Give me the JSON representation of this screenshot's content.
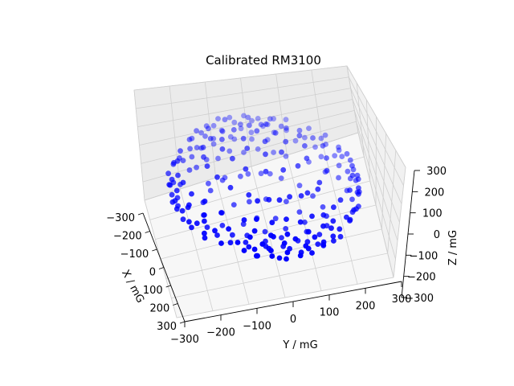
{
  "chart_data": {
    "type": "scatter",
    "projection": "3d",
    "title": "Calibrated RM3100",
    "xlabel": "X / mG",
    "ylabel": "Y / mG",
    "zlabel": "Z / mG",
    "xlim": [
      -300,
      300
    ],
    "ylim": [
      -300,
      300
    ],
    "zlim": [
      -300,
      300
    ],
    "xticks": [
      "−300",
      "−200",
      "−100",
      "0",
      "100",
      "200",
      "300"
    ],
    "yticks": [
      "−300",
      "−200",
      "−100",
      "0",
      "100",
      "200",
      "300"
    ],
    "zticks": [
      "−300",
      "−200",
      "−100",
      "0",
      "100",
      "200",
      "300"
    ],
    "grid": true,
    "marker_color": "#0000ff",
    "points": [
      [
        -150,
        -220,
        40
      ],
      [
        -120,
        -250,
        20
      ],
      [
        -90,
        -260,
        -10
      ],
      [
        -60,
        -270,
        30
      ],
      [
        -30,
        -275,
        -40
      ],
      [
        0,
        -280,
        10
      ],
      [
        30,
        -270,
        -20
      ],
      [
        60,
        -265,
        40
      ],
      [
        90,
        -250,
        -30
      ],
      [
        120,
        -240,
        20
      ],
      [
        150,
        -220,
        -10
      ],
      [
        180,
        -190,
        30
      ],
      [
        200,
        -170,
        -40
      ],
      [
        220,
        -140,
        10
      ],
      [
        240,
        -110,
        -20
      ],
      [
        250,
        -80,
        30
      ],
      [
        260,
        -50,
        -10
      ],
      [
        270,
        -20,
        20
      ],
      [
        275,
        10,
        -30
      ],
      [
        270,
        40,
        10
      ],
      [
        265,
        70,
        -40
      ],
      [
        250,
        100,
        20
      ],
      [
        240,
        130,
        -10
      ],
      [
        220,
        160,
        30
      ],
      [
        200,
        180,
        -20
      ],
      [
        180,
        200,
        10
      ],
      [
        150,
        220,
        -30
      ],
      [
        120,
        240,
        20
      ],
      [
        90,
        255,
        -10
      ],
      [
        60,
        265,
        30
      ],
      [
        30,
        270,
        -20
      ],
      [
        0,
        275,
        10
      ],
      [
        -30,
        270,
        -40
      ],
      [
        -60,
        265,
        20
      ],
      [
        -90,
        255,
        -10
      ],
      [
        -120,
        240,
        30
      ],
      [
        -150,
        220,
        -20
      ],
      [
        -180,
        200,
        10
      ],
      [
        -200,
        180,
        -30
      ],
      [
        -220,
        160,
        20
      ],
      [
        -240,
        130,
        -10
      ],
      [
        -250,
        100,
        30
      ],
      [
        -265,
        70,
        -20
      ],
      [
        -270,
        40,
        10
      ],
      [
        -275,
        10,
        -40
      ],
      [
        -270,
        -20,
        20
      ],
      [
        -260,
        -50,
        -10
      ],
      [
        -250,
        -80,
        30
      ],
      [
        -240,
        -110,
        -20
      ],
      [
        -220,
        -140,
        10
      ],
      [
        -200,
        -170,
        -30
      ],
      [
        -180,
        -190,
        20
      ],
      [
        -100,
        -150,
        180
      ],
      [
        -50,
        -170,
        190
      ],
      [
        0,
        -180,
        200
      ],
      [
        50,
        -170,
        190
      ],
      [
        100,
        -150,
        180
      ],
      [
        140,
        -110,
        170
      ],
      [
        170,
        -60,
        160
      ],
      [
        180,
        0,
        170
      ],
      [
        170,
        60,
        160
      ],
      [
        140,
        110,
        170
      ],
      [
        100,
        150,
        180
      ],
      [
        50,
        170,
        190
      ],
      [
        0,
        180,
        200
      ],
      [
        -50,
        170,
        190
      ],
      [
        -100,
        150,
        180
      ],
      [
        -140,
        110,
        170
      ],
      [
        -170,
        60,
        160
      ],
      [
        -180,
        0,
        170
      ],
      [
        -170,
        -60,
        160
      ],
      [
        -140,
        -110,
        170
      ],
      [
        -80,
        -100,
        240
      ],
      [
        -30,
        -120,
        250
      ],
      [
        20,
        -110,
        250
      ],
      [
        70,
        -90,
        240
      ],
      [
        100,
        -40,
        245
      ],
      [
        110,
        10,
        250
      ],
      [
        100,
        60,
        245
      ],
      [
        70,
        100,
        240
      ],
      [
        20,
        115,
        250
      ],
      [
        -30,
        120,
        250
      ],
      [
        -80,
        100,
        240
      ],
      [
        -110,
        50,
        245
      ],
      [
        -115,
        0,
        250
      ],
      [
        -110,
        -50,
        245
      ],
      [
        -40,
        -50,
        280
      ],
      [
        10,
        -60,
        285
      ],
      [
        50,
        -20,
        285
      ],
      [
        50,
        30,
        280
      ],
      [
        10,
        60,
        285
      ],
      [
        -40,
        50,
        280
      ],
      [
        -60,
        0,
        285
      ],
      [
        0,
        0,
        295
      ],
      [
        -100,
        -150,
        -180
      ],
      [
        -50,
        -170,
        -190
      ],
      [
        0,
        -180,
        -200
      ],
      [
        50,
        -170,
        -190
      ],
      [
        100,
        -150,
        -180
      ],
      [
        140,
        -110,
        -170
      ],
      [
        170,
        -60,
        -160
      ],
      [
        180,
        0,
        -170
      ],
      [
        170,
        60,
        -160
      ],
      [
        140,
        110,
        -170
      ],
      [
        100,
        150,
        -180
      ],
      [
        50,
        170,
        -190
      ],
      [
        0,
        180,
        -200
      ],
      [
        -50,
        170,
        -190
      ],
      [
        -100,
        150,
        -180
      ],
      [
        -140,
        110,
        -170
      ],
      [
        -170,
        60,
        -160
      ],
      [
        -180,
        0,
        -170
      ],
      [
        -170,
        -60,
        -160
      ],
      [
        -140,
        -110,
        -170
      ],
      [
        -80,
        -100,
        -240
      ],
      [
        -30,
        -120,
        -250
      ],
      [
        20,
        -110,
        -250
      ],
      [
        70,
        -90,
        -240
      ],
      [
        100,
        -40,
        -245
      ],
      [
        110,
        10,
        -250
      ],
      [
        100,
        60,
        -245
      ],
      [
        70,
        100,
        -240
      ],
      [
        20,
        115,
        -250
      ],
      [
        -30,
        120,
        -250
      ],
      [
        -80,
        100,
        -240
      ],
      [
        -110,
        50,
        -245
      ],
      [
        -115,
        0,
        -250
      ],
      [
        -110,
        -50,
        -245
      ],
      [
        -40,
        -50,
        -280
      ],
      [
        10,
        -60,
        -285
      ],
      [
        50,
        -20,
        -285
      ],
      [
        50,
        30,
        -280
      ],
      [
        10,
        60,
        -285
      ],
      [
        -40,
        50,
        -280
      ],
      [
        -60,
        0,
        -285
      ],
      [
        0,
        0,
        -295
      ],
      [
        -200,
        -150,
        100
      ],
      [
        -220,
        -120,
        120
      ],
      [
        -240,
        -80,
        110
      ],
      [
        -250,
        -40,
        130
      ],
      [
        -260,
        0,
        110
      ],
      [
        -250,
        40,
        120
      ],
      [
        -240,
        80,
        100
      ],
      [
        -220,
        120,
        110
      ],
      [
        -200,
        150,
        120
      ],
      [
        200,
        -150,
        100
      ],
      [
        220,
        -120,
        120
      ],
      [
        240,
        -80,
        110
      ],
      [
        250,
        -40,
        130
      ],
      [
        260,
        0,
        110
      ],
      [
        250,
        40,
        120
      ],
      [
        240,
        80,
        100
      ],
      [
        220,
        120,
        110
      ],
      [
        200,
        150,
        120
      ],
      [
        -200,
        -150,
        -100
      ],
      [
        -220,
        -120,
        -120
      ],
      [
        -240,
        -80,
        -110
      ],
      [
        -250,
        -40,
        -130
      ],
      [
        -260,
        0,
        -110
      ],
      [
        -250,
        40,
        -120
      ],
      [
        -240,
        80,
        -100
      ],
      [
        -220,
        120,
        -110
      ],
      [
        -200,
        150,
        -120
      ],
      [
        200,
        -150,
        -100
      ],
      [
        220,
        -120,
        -120
      ],
      [
        240,
        -80,
        -110
      ],
      [
        250,
        -40,
        -130
      ],
      [
        260,
        0,
        -110
      ],
      [
        250,
        40,
        -120
      ],
      [
        240,
        80,
        -100
      ],
      [
        220,
        120,
        -110
      ],
      [
        200,
        150,
        -120
      ],
      [
        -150,
        -200,
        110
      ],
      [
        -100,
        -230,
        120
      ],
      [
        -50,
        -250,
        100
      ],
      [
        0,
        -255,
        120
      ],
      [
        50,
        -250,
        110
      ],
      [
        100,
        -230,
        120
      ],
      [
        150,
        -200,
        100
      ],
      [
        -150,
        200,
        110
      ],
      [
        -100,
        230,
        120
      ],
      [
        -50,
        250,
        100
      ],
      [
        0,
        255,
        120
      ],
      [
        50,
        250,
        110
      ],
      [
        100,
        230,
        120
      ],
      [
        150,
        200,
        100
      ],
      [
        -150,
        -200,
        -110
      ],
      [
        -100,
        -230,
        -120
      ],
      [
        -50,
        -250,
        -100
      ],
      [
        0,
        -255,
        -120
      ],
      [
        50,
        -250,
        -110
      ],
      [
        100,
        -230,
        -120
      ],
      [
        150,
        -200,
        -100
      ],
      [
        -150,
        200,
        -110
      ],
      [
        -100,
        230,
        -120
      ],
      [
        -50,
        250,
        -100
      ],
      [
        0,
        255,
        -120
      ],
      [
        50,
        250,
        -110
      ],
      [
        100,
        230,
        -120
      ],
      [
        150,
        200,
        -100
      ],
      [
        -230,
        -130,
        60
      ],
      [
        -255,
        -90,
        50
      ],
      [
        -270,
        -45,
        60
      ],
      [
        -272,
        20,
        55
      ],
      [
        -262,
        70,
        60
      ],
      [
        -240,
        110,
        50
      ],
      [
        230,
        -130,
        60
      ],
      [
        255,
        -90,
        50
      ],
      [
        270,
        -45,
        60
      ],
      [
        272,
        20,
        55
      ],
      [
        262,
        70,
        60
      ],
      [
        240,
        110,
        50
      ],
      [
        -230,
        -130,
        -60
      ],
      [
        -255,
        -90,
        -50
      ],
      [
        -270,
        -45,
        -60
      ],
      [
        -272,
        20,
        -55
      ],
      [
        -262,
        70,
        -60
      ],
      [
        -240,
        110,
        -50
      ],
      [
        230,
        -130,
        -60
      ],
      [
        255,
        -90,
        -50
      ],
      [
        270,
        -45,
        -60
      ],
      [
        272,
        20,
        -55
      ],
      [
        262,
        70,
        -60
      ],
      [
        240,
        110,
        -50
      ],
      [
        -130,
        -230,
        60
      ],
      [
        -70,
        -260,
        50
      ],
      [
        -10,
        -270,
        60
      ],
      [
        60,
        -262,
        55
      ],
      [
        120,
        -240,
        60
      ],
      [
        -130,
        230,
        60
      ],
      [
        -70,
        260,
        50
      ],
      [
        -10,
        270,
        60
      ],
      [
        60,
        262,
        55
      ],
      [
        120,
        240,
        60
      ],
      [
        -130,
        -230,
        -60
      ],
      [
        -70,
        -260,
        -50
      ],
      [
        -10,
        -270,
        -60
      ],
      [
        60,
        -262,
        -55
      ],
      [
        120,
        -240,
        -60
      ],
      [
        -130,
        230,
        -60
      ],
      [
        -70,
        260,
        -50
      ],
      [
        -10,
        270,
        -60
      ],
      [
        60,
        262,
        -55
      ],
      [
        120,
        240,
        -60
      ],
      [
        -180,
        -100,
        180
      ],
      [
        -200,
        -40,
        190
      ],
      [
        -195,
        30,
        185
      ],
      [
        -175,
        90,
        180
      ],
      [
        180,
        -100,
        180
      ],
      [
        200,
        -40,
        190
      ],
      [
        195,
        30,
        185
      ],
      [
        175,
        90,
        180
      ],
      [
        -180,
        -100,
        -180
      ],
      [
        -200,
        -40,
        -190
      ],
      [
        -195,
        30,
        -185
      ],
      [
        -175,
        90,
        -180
      ],
      [
        180,
        -100,
        -180
      ],
      [
        200,
        -40,
        -190
      ],
      [
        195,
        30,
        -185
      ],
      [
        175,
        90,
        -180
      ]
    ]
  }
}
